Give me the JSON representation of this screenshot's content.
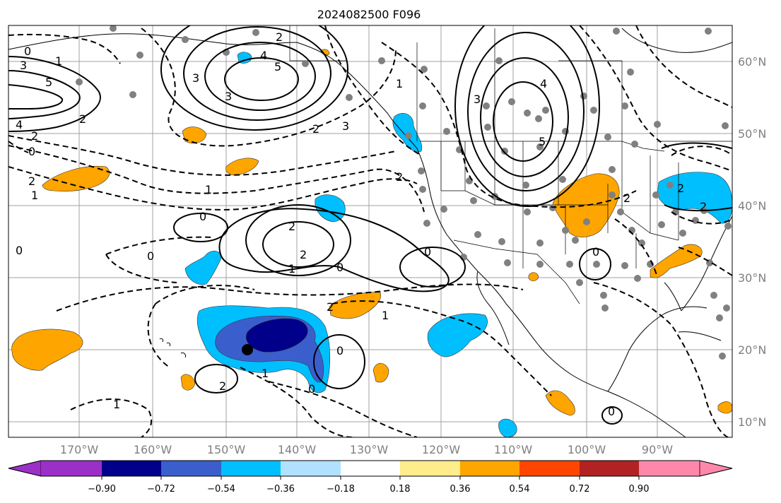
{
  "map": {
    "title": "2024082500 F096",
    "lon_labels": [
      "170°W",
      "160°W",
      "150°W",
      "140°W",
      "130°W",
      "120°W",
      "110°W",
      "100°W",
      "90°W"
    ],
    "lat_labels": [
      "60°N",
      "50°N",
      "40°N",
      "30°N",
      "20°N",
      "10°N"
    ],
    "contour_labels": [
      {
        "t": "0"
      },
      {
        "t": "1"
      },
      {
        "t": "3"
      },
      {
        "t": "5"
      },
      {
        "t": "4"
      },
      {
        "t": "2"
      },
      {
        "t": "0"
      },
      {
        "t": "2"
      },
      {
        "t": "1"
      },
      {
        "t": "2"
      },
      {
        "t": "3"
      },
      {
        "t": "4"
      },
      {
        "t": "5"
      },
      {
        "t": "3"
      },
      {
        "t": "2"
      },
      {
        "t": "2"
      },
      {
        "t": "3"
      },
      {
        "t": "1"
      },
      {
        "t": "4"
      },
      {
        "t": "5"
      },
      {
        "t": "3"
      },
      {
        "t": "2"
      },
      {
        "t": "1"
      },
      {
        "t": "0"
      },
      {
        "t": "2"
      },
      {
        "t": "2"
      },
      {
        "t": "1"
      },
      {
        "t": "0"
      },
      {
        "t": "2"
      },
      {
        "t": "1"
      },
      {
        "t": "0"
      },
      {
        "t": "0"
      },
      {
        "t": "0"
      },
      {
        "t": "2"
      },
      {
        "t": "1"
      },
      {
        "t": "0"
      },
      {
        "t": "0"
      },
      {
        "t": "1"
      },
      {
        "t": "0"
      },
      {
        "t": "2"
      },
      {
        "t": "2"
      },
      {
        "t": "2"
      },
      {
        "t": "0"
      }
    ]
  },
  "colorbar": {
    "tick_labels": [
      "−0.90",
      "−0.72",
      "−0.54",
      "−0.36",
      "−0.18",
      "0.18",
      "0.36",
      "0.54",
      "0.72",
      "0.90"
    ],
    "colors": [
      "#9b30c8",
      "#00008b",
      "#3a5fcd",
      "#00bfff",
      "#b0e2ff",
      "#ffffff",
      "#ffec8b",
      "#ffa500",
      "#ff4500",
      "#b22222",
      "#ff88aa"
    ]
  }
}
